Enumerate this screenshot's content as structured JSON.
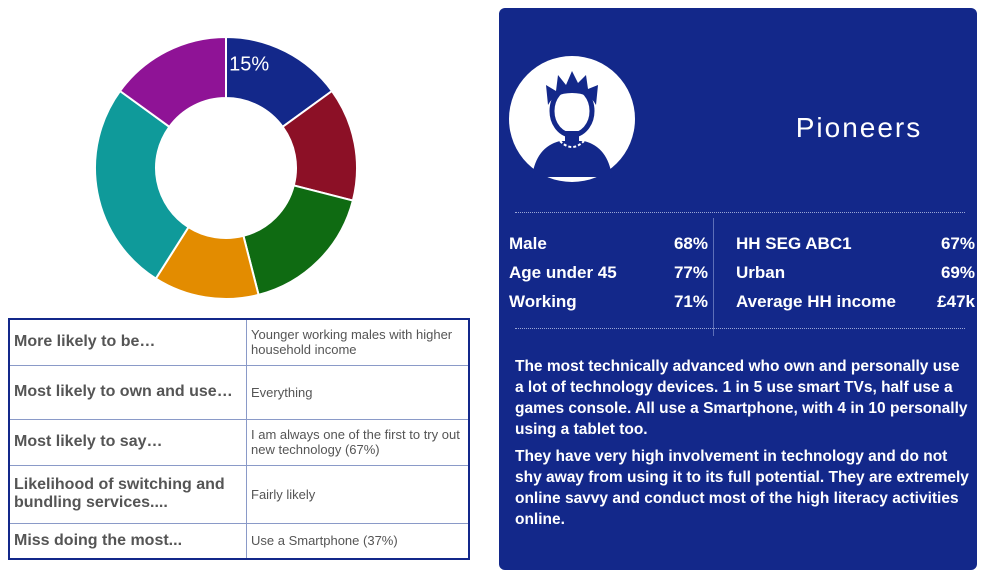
{
  "chart_data": {
    "type": "donut",
    "values": [
      15,
      14,
      17,
      13,
      26,
      15
    ],
    "value_labels": [
      "15%",
      null,
      null,
      null,
      null,
      null
    ],
    "colors": [
      "#13288a",
      "#8c1026",
      "#0f6b12",
      "#e38c00",
      "#0f9a9a",
      "#8f1396"
    ]
  },
  "table": {
    "rows": [
      [
        "More likely to be…",
        "Younger working males with higher household income"
      ],
      [
        "Most likely to own and use…",
        "Everything"
      ],
      [
        "Most likely to say…",
        "I am always one of the first to try out new technology (67%)"
      ],
      [
        " Likelihood of switching and bundling services....",
        "Fairly likely"
      ],
      [
        "Miss doing the most...",
        "Use a Smartphone (37%)"
      ]
    ]
  },
  "card": {
    "title": "Pioneers",
    "stats_left": [
      [
        "Male",
        "68%"
      ],
      [
        "Age under 45",
        "77%"
      ],
      [
        "Working",
        "71%"
      ]
    ],
    "stats_right": [
      [
        "HH SEG ABC1",
        "67%"
      ],
      [
        "Urban",
        "69%"
      ],
      [
        "Average HH income",
        "£47k"
      ]
    ],
    "paragraphs": [
      "The most technically advanced who own and personally use a lot of technology devices. 1 in 5 use smart TVs, half use a games console. All use a Smartphone, with 4 in 10 personally using a tablet too.",
      "They have very high involvement in technology and do not shy away from using it to its full potential. They are extremely online savvy and conduct most of the high literacy activities online."
    ]
  }
}
